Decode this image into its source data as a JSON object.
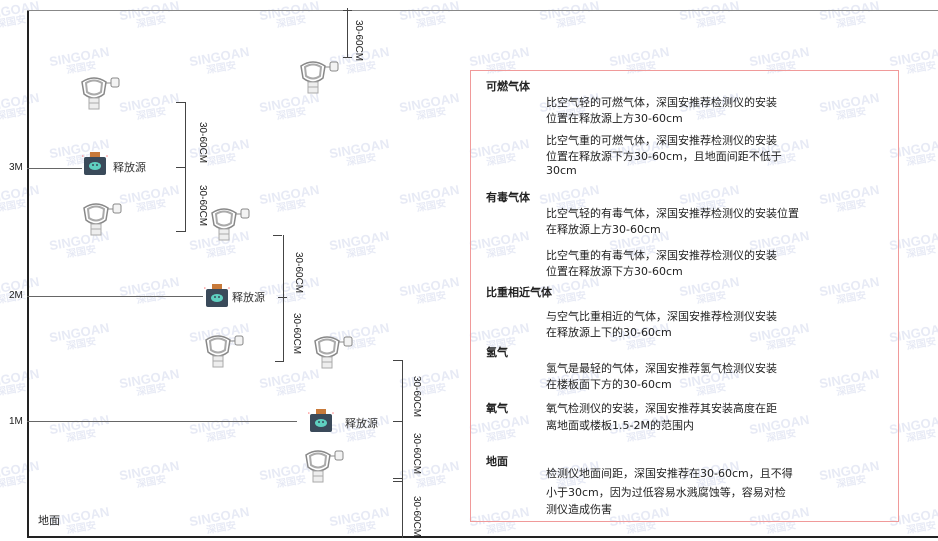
{
  "watermark": {
    "brand": "SINGOAN",
    "cn": "深国安"
  },
  "levels": [
    "3M",
    "2M",
    "1M"
  ],
  "ground_label": "地面",
  "source_label": "释放源",
  "dimension_label": "30-60CM",
  "colors": {
    "box_border": "#f09a9a",
    "source_body": "#3a4a5a",
    "source_cap": "#c87a3a",
    "source_face": "#5fd0c0"
  },
  "legend": {
    "sections": [
      {
        "title": "可燃气体",
        "paragraphs": [
          [
            "比空气轻的可燃气体，深国安推荐检测仪的安装",
            "位置在释放源上方30-60cm"
          ],
          [
            "比空气重的可燃气体，深国安推荐检测仪的安装",
            "位置在释放源下方30-60cm，且地面间距不低于",
            "30cm"
          ]
        ]
      },
      {
        "title": "有毒气体",
        "paragraphs": [
          [
            "比空气轻的有毒气体，深国安推荐检测仪的安装位置",
            "在释放源上方30-60cm"
          ],
          [
            "比空气重的有毒气体，深国安推荐检测仪的安装",
            "位置在释放源下方30-60cm"
          ]
        ]
      },
      {
        "title": "比重相近气体",
        "paragraphs": [
          [
            "与空气比重相近的气体，深国安推荐检测仪安装",
            "在释放源上下的30-60cm"
          ]
        ]
      },
      {
        "title": "氢气",
        "paragraphs": [
          [
            "氢气是最轻的气体，深国安推荐氢气检测仪安装",
            "在楼板面下方的30-60cm"
          ]
        ]
      },
      {
        "title": "氧气",
        "paragraphs": [
          [
            "氧气检测仪的安装，深国安推荐其安装高度在距",
            "离地面或楼板1.5-2M的范围内"
          ]
        ]
      },
      {
        "title": "地面",
        "paragraphs": [
          [
            "检测仪地面间距，深国安推荐在30-60cm，且不得",
            "小于30cm，因为过低容易水溅腐蚀等，容易对检",
            "测仪造成伤害"
          ]
        ]
      }
    ]
  }
}
